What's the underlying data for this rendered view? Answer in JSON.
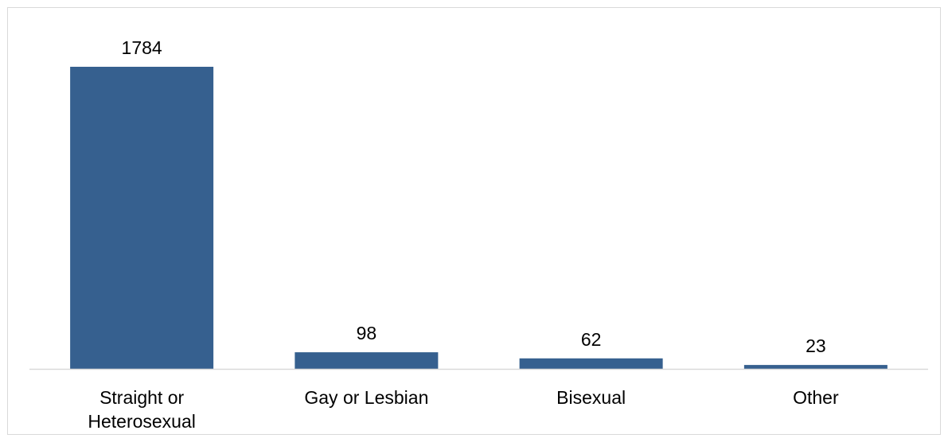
{
  "chart_data": {
    "type": "bar",
    "categories": [
      [
        "Straight or",
        "Heterosexual"
      ],
      [
        "Gay or Lesbian"
      ],
      [
        "Bisexual"
      ],
      [
        "Other"
      ]
    ],
    "values": [
      1784,
      98,
      62,
      23
    ],
    "title": "",
    "xlabel": "",
    "ylabel": "",
    "ylim": [
      0,
      1784
    ],
    "grid": false,
    "legend": "none",
    "colors": {
      "bar": "#36608f",
      "axis": "#d9d9d9",
      "frame": "#d9d9d9"
    }
  }
}
